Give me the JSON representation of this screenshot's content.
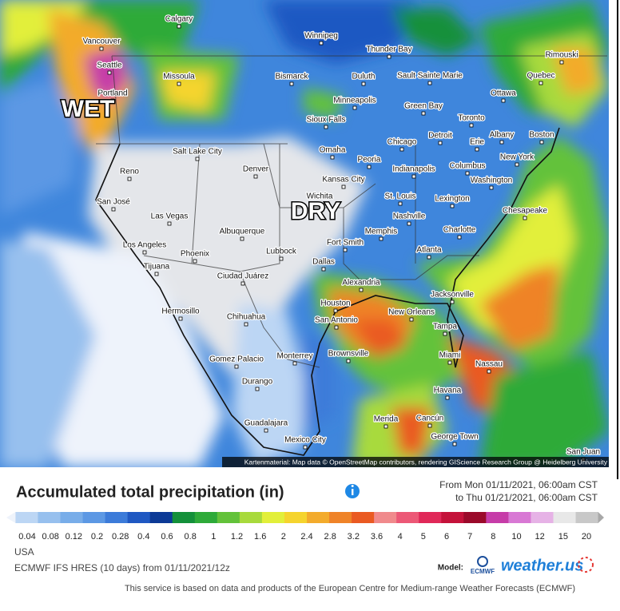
{
  "map": {
    "labels": {
      "wet": "WET",
      "dry": "DRY"
    },
    "cities": [
      "Calgary",
      "Vancouver",
      "Winnipeg",
      "Thunder Bay",
      "Rimouski",
      "Seattle",
      "Missoula",
      "Bismarck",
      "Duluth",
      "Sault Sainte Marie",
      "Quebec",
      "Portland",
      "Ottawa",
      "Minneapolis",
      "Green Bay",
      "Toronto",
      "Sioux Falls",
      "Detroit",
      "Albany",
      "Boston",
      "Chicago",
      "Erie",
      "Salt Lake City",
      "Omaha",
      "Peoria",
      "New York",
      "Reno",
      "Denver",
      "Indianapolis",
      "Columbus",
      "Kansas City",
      "Washington",
      "Wichita",
      "St. Louis",
      "Lexington",
      "San José",
      "Chesapeake",
      "Las Vegas",
      "Nashville",
      "Albuquerque",
      "Memphis",
      "Charlotte",
      "Fort Smith",
      "Los Angeles",
      "Lubbock",
      "Atlanta",
      "Phoenix",
      "Tijuana",
      "Dallas",
      "Ciudad Juárez",
      "Alexandria",
      "Jacksonville",
      "Houston",
      "New Orleans",
      "Hermosillo",
      "Chihuahua",
      "San Antonio",
      "Tampa",
      "Brownsville",
      "Miami",
      "Nassau",
      "Monterrey",
      "Gomez Palacio",
      "Durango",
      "Havana",
      "Merida",
      "Cancún",
      "Guadalajara",
      "George Town",
      "Mexico City",
      "San Juan"
    ],
    "attribution": "Kartenmaterial: Map data © OpenStreetMap contributors, rendering GIScience Research Group @ Heidelberg University"
  },
  "legend": {
    "title": "Accumulated total precipitation (in)",
    "period": [
      "From Mon 01/11/2021, 06:00am CST",
      "to Thu 01/21/2021, 06:00am CST"
    ],
    "ticks": [
      0.04,
      0.08,
      0.12,
      0.2,
      0.28,
      0.4,
      0.6,
      0.8,
      1,
      1.2,
      1.6,
      2,
      2.4,
      2.8,
      3.2,
      3.6,
      4,
      5,
      6,
      7,
      8,
      10,
      12,
      15,
      20
    ],
    "colors": [
      "#eef3fb",
      "#bcd6f4",
      "#97c0ee",
      "#78ade9",
      "#5c98e4",
      "#3c7bd9",
      "#1f58c2",
      "#0c3a96",
      "#14903a",
      "#2eaa39",
      "#63c23a",
      "#a8da3c",
      "#e2ef3a",
      "#f5d42e",
      "#f3ab2c",
      "#ef8328",
      "#ea5a22",
      "#f08a8c",
      "#ec5876",
      "#e02858",
      "#c4123a",
      "#9a0a2a",
      "#c63ca8",
      "#d878d4",
      "#e6b2e6",
      "#e8e8e8",
      "#c8c8c8",
      "#a8a8a8"
    ]
  },
  "footer": {
    "region": "USA",
    "model_run": "ECMWF IFS HRES (10 days) from 01/11/2021/12z",
    "model_label": "Model:",
    "ecmwf": "ECMWF",
    "brand": "weather.us",
    "disclaimer": "This service is based on data and products of the European Centre for Medium-range Weather Forecasts (ECMWF)"
  }
}
